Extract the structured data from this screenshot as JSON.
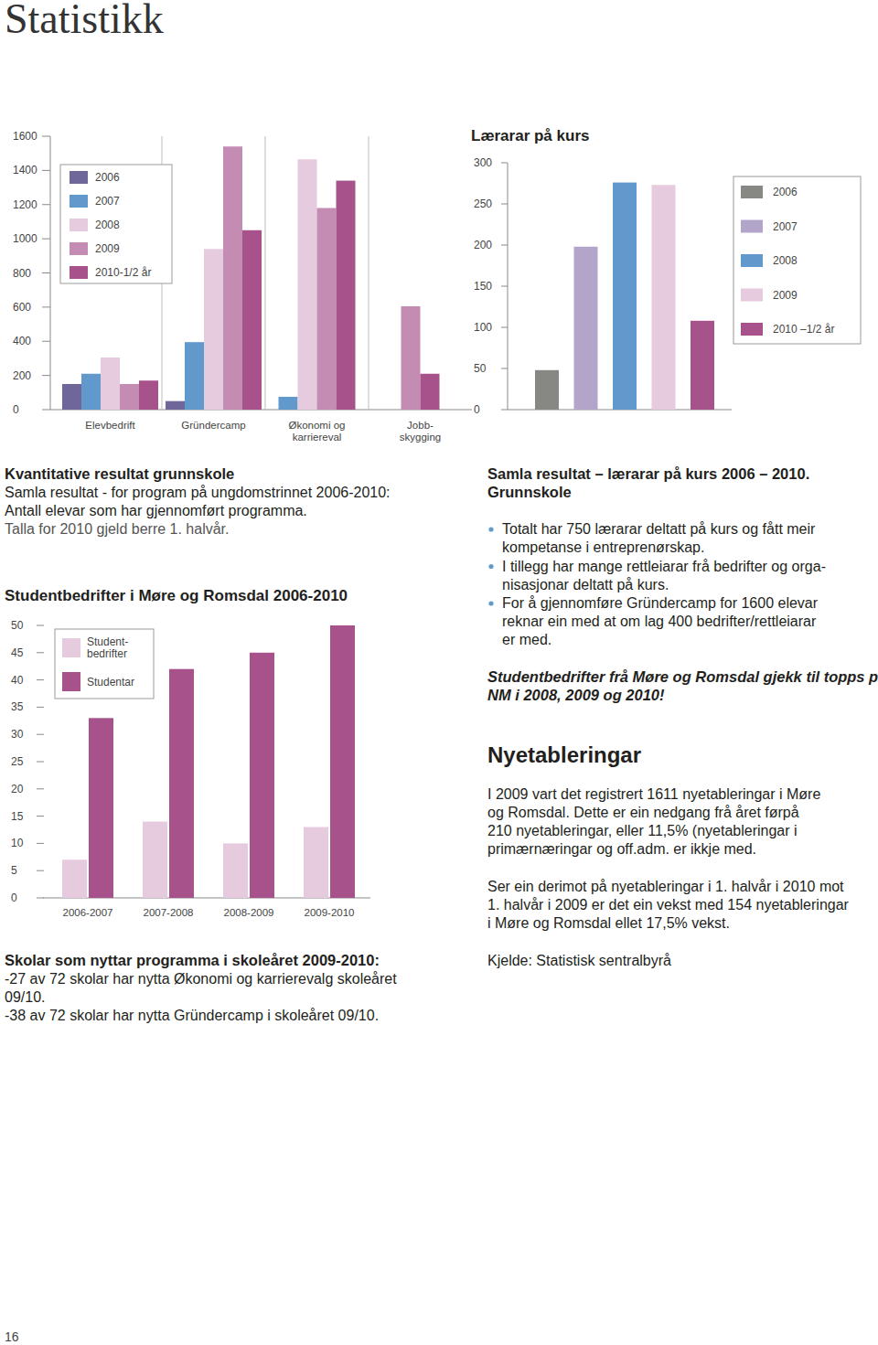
{
  "page": {
    "title": "Statistikk",
    "page_number": "16"
  },
  "chart_data": [
    {
      "type": "bar",
      "categories": [
        "Elevbedrift",
        "Gründercamp",
        "Økonomi og karriereval",
        "Jobb-skygging"
      ],
      "series": [
        {
          "name": "2006",
          "color": "#6f6699",
          "values": [
            150,
            50,
            null,
            null
          ]
        },
        {
          "name": "2007",
          "color": "#6199cc",
          "values": [
            210,
            395,
            75,
            null
          ]
        },
        {
          "name": "2008",
          "color": "#e6cadd",
          "values": [
            305,
            940,
            1465,
            null
          ]
        },
        {
          "name": "2009",
          "color": "#c48cb3",
          "values": [
            150,
            1540,
            1180,
            605
          ]
        },
        {
          "name": "2010-1/2 år",
          "color": "#a8528b",
          "values": [
            170,
            1050,
            1340,
            210
          ]
        }
      ],
      "ylim": [
        0,
        1600
      ],
      "yticks": [
        0,
        200,
        400,
        600,
        800,
        1000,
        1200,
        1400,
        1600
      ],
      "grid": false,
      "legend": "upper left"
    },
    {
      "type": "bar",
      "title": "Lærarar på kurs",
      "categories": [
        "2006",
        "2007",
        "2008",
        "2009",
        "2010 –1/2 år"
      ],
      "values": [
        48,
        198,
        276,
        273,
        108
      ],
      "colors": [
        "#878883",
        "#b3a4c9",
        "#6199cc",
        "#e6cadd",
        "#a8528b"
      ],
      "ylim": [
        0,
        300
      ],
      "yticks": [
        0,
        50,
        100,
        150,
        200,
        250,
        300
      ],
      "grid": false,
      "legend": "upper right",
      "tick_labels": "y"
    },
    {
      "type": "bar",
      "title": "Studentbedrifter i Møre og Romsdal 2006-2010",
      "categories": [
        "2006-2007",
        "2007-2008",
        "2008-2009",
        "2009-2010"
      ],
      "series": [
        {
          "name": "Student-bedrifter",
          "color": "#e6cadd",
          "values": [
            7,
            14,
            10,
            13
          ]
        },
        {
          "name": "Studentar",
          "color": "#a8528b",
          "values": [
            33,
            42,
            45,
            50
          ]
        }
      ],
      "ylim": [
        0,
        50
      ],
      "yticks": [
        0,
        5,
        10,
        15,
        20,
        25,
        30,
        35,
        40,
        45,
        50
      ],
      "grid": false,
      "legend": "upper left"
    }
  ],
  "left_text": {
    "heading": "Kvantitative resultat grunnskole",
    "lines": [
      "Samla resultat - for program på ungdomstrinnet 2006-2010:",
      "Antall elevar som har gjennomført programma.",
      "Talla for 2010 gjeld berre 1. halvår."
    ]
  },
  "schools": {
    "heading": "Skolar som nyttar programma i skoleåret 2009-2010:",
    "lines": [
      "-27 av 72 skolar har nytta Økonomi og karrierevalg skoleåret",
      "09/10.",
      "-38 av 72 skolar har nytta Gründercamp i skoleåret 09/10."
    ]
  },
  "right_column": {
    "heading": [
      "Samla resultat – lærarar på kurs 2006 – 2010.",
      "Grunnskole"
    ],
    "bullets": [
      [
        "Totalt har 750 lærarar deltatt på kurs og fått meir",
        "kompetanse i entreprenørskap."
      ],
      [
        "I tillegg har mange rettleiarar frå bedrifter og orga-",
        "nisasjonar deltatt på kurs."
      ],
      [
        "For å gjennomføre Gründercamp for 1600 elevar",
        "reknar ein med at om lag 400 bedrifter/rettleiarar",
        "er med."
      ]
    ],
    "highlight": [
      "Studentbedrifter frå Møre og Romsdal gjekk til topps på",
      "NM i 2008, 2009 og 2010!"
    ],
    "section_title": "Nyetableringar",
    "paragraphs": [
      [
        "I 2009 vart det registrert 1611 nyetableringar i Møre",
        "og Romsdal. Dette er ein nedgang frå året førpå",
        "210 nyetableringar, eller 11,5% (nyetableringar i",
        "primærnæringar og off.adm. er ikkje med."
      ],
      [
        "Ser ein derimot på nyetableringar i 1. halvår i 2010 mot",
        "1. halvår i 2009 er det ein vekst med 154 nyetableringar",
        "i Møre og Romsdal ellet 17,5% vekst."
      ]
    ],
    "source": "Kjelde: Statistisk sentralbyrå"
  }
}
